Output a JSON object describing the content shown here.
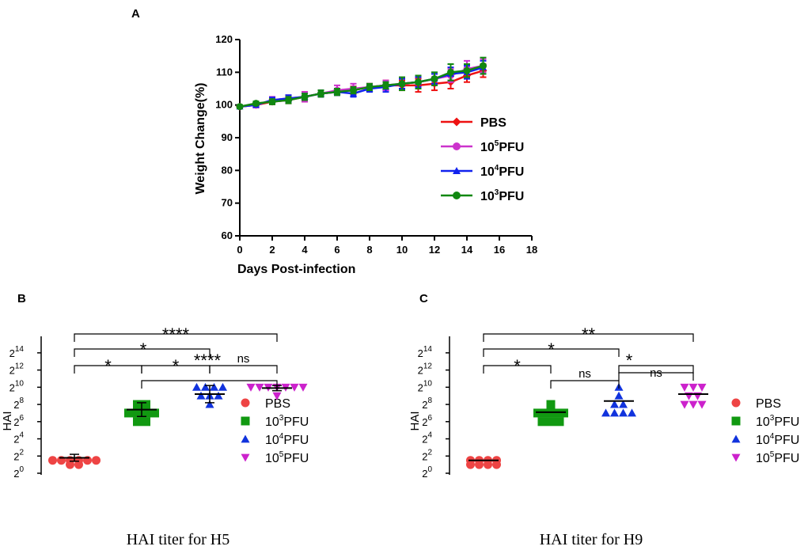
{
  "chart_data": [
    {
      "panel": "A",
      "type": "line",
      "xlabel": "Days Post-infection",
      "ylabel": "Weight Change(%)",
      "xlim": [
        0,
        18
      ],
      "ylim": [
        60,
        120
      ],
      "xticks": [
        "0",
        "2",
        "4",
        "6",
        "8",
        "10",
        "12",
        "14",
        "16",
        "18"
      ],
      "yticks": [
        "60",
        "70",
        "80",
        "90",
        "100",
        "110",
        "120"
      ],
      "x": [
        0,
        1,
        2,
        3,
        4,
        5,
        6,
        7,
        8,
        9,
        10,
        11,
        12,
        13,
        14,
        15
      ],
      "series": [
        {
          "name": "PBS",
          "base": "",
          "exp": "",
          "suffix": "PBS",
          "marker": "diamond",
          "color": "#ee1111",
          "values": [
            99.5,
            100,
            101,
            101.5,
            102.5,
            103.5,
            104,
            104.5,
            105.5,
            106,
            106,
            106,
            106.5,
            107,
            109,
            110.5
          ],
          "errors": [
            0.5,
            0.6,
            0.8,
            1,
            1.5,
            1,
            1,
            1.2,
            1,
            1.5,
            1.5,
            2,
            2,
            2,
            2,
            2
          ]
        },
        {
          "name": "10^5PFU",
          "base": "10",
          "exp": "5",
          "suffix": "PFU",
          "marker": "circle",
          "color": "#cc33cc",
          "values": [
            99.5,
            100,
            101.5,
            102,
            102.5,
            103.5,
            104.5,
            105,
            105.5,
            106,
            106.5,
            107,
            108,
            109,
            111,
            112
          ],
          "errors": [
            0.5,
            0.8,
            1,
            1,
            1.5,
            1,
            1.5,
            1.5,
            1,
            1.5,
            1.5,
            1.5,
            1.5,
            2,
            2.5,
            2
          ]
        },
        {
          "name": "10^4PFU",
          "base": "10",
          "exp": "4",
          "suffix": "PFU",
          "marker": "triangle",
          "color": "#1122ee",
          "values": [
            99.5,
            100,
            101.5,
            102,
            102.5,
            103.5,
            104,
            103.5,
            105,
            105.5,
            106.5,
            107,
            108,
            109.5,
            110,
            111.5
          ],
          "errors": [
            0.5,
            0.6,
            0.8,
            1,
            1,
            1,
            1,
            1,
            1,
            1.5,
            1.5,
            1.5,
            1.5,
            2,
            2,
            2
          ]
        },
        {
          "name": "10^3PFU",
          "base": "10",
          "exp": "3",
          "suffix": "PFU",
          "marker": "circle",
          "color": "#118811",
          "values": [
            99.5,
            100.5,
            101,
            101.5,
            102.5,
            103.5,
            104,
            104.5,
            105.5,
            106,
            106.5,
            107,
            108,
            110,
            110.5,
            112
          ],
          "errors": [
            0.5,
            0.6,
            0.8,
            1,
            1,
            1,
            1,
            1,
            1,
            1,
            2,
            2,
            2,
            2.5,
            2,
            2.5
          ]
        }
      ]
    },
    {
      "panel": "B",
      "type": "scatter",
      "title": "HAI titer for H5",
      "ylabel": "HAI",
      "ytick_exponents": [
        "0",
        "2",
        "4",
        "6",
        "8",
        "10",
        "12",
        "14"
      ],
      "ylim": [
        0,
        15
      ],
      "groups": [
        {
          "name": "PBS",
          "base": "",
          "exp": "",
          "suffix": "PBS",
          "marker": "circle",
          "color": "#ee4444",
          "points": [
            1,
            1,
            1.5,
            1.5,
            1.5,
            1.5,
            1.5,
            1.5
          ],
          "mean": 1.8,
          "sd": 0.4
        },
        {
          "name": "10^3PFU",
          "base": "10",
          "exp": "3",
          "suffix": "PFU",
          "marker": "square",
          "color": "#119911",
          "points": [
            6,
            6,
            7,
            7,
            7,
            7,
            8,
            8
          ],
          "mean": 7.4,
          "sd": 0.8
        },
        {
          "name": "10^4PFU",
          "base": "10",
          "exp": "4",
          "suffix": "PFU",
          "marker": "triangle",
          "color": "#1133dd",
          "points": [
            8,
            9,
            9,
            9,
            10,
            10,
            10,
            10
          ],
          "mean": 9.2,
          "sd": 1
        },
        {
          "name": "10^5PFU",
          "base": "10",
          "exp": "5",
          "suffix": "PFU",
          "marker": "triangle-down",
          "color": "#cc22cc",
          "points": [
            9,
            10,
            10,
            10,
            10,
            10,
            10,
            10
          ],
          "mean": 9.9,
          "sd": 0.3
        }
      ],
      "comparisons": [
        {
          "from": 0,
          "to": 3,
          "label": "****",
          "level": 3
        },
        {
          "from": 0,
          "to": 2,
          "label": "*",
          "level": 2
        },
        {
          "from": 0,
          "to": 1,
          "label": "*",
          "level": 1
        },
        {
          "from": 1,
          "to": 3,
          "label": "****",
          "level": 1.3
        },
        {
          "from": 1,
          "to": 2,
          "label": "*",
          "level": 0
        },
        {
          "from": 2,
          "to": 3,
          "label": "ns",
          "level": 0
        }
      ]
    },
    {
      "panel": "C",
      "type": "scatter",
      "title": "HAI titer for H9",
      "ylabel": "HAI",
      "ytick_exponents": [
        "0",
        "2",
        "4",
        "6",
        "8",
        "10",
        "12",
        "14"
      ],
      "ylim": [
        0,
        15
      ],
      "groups": [
        {
          "name": "PBS",
          "base": "",
          "exp": "",
          "suffix": "PBS",
          "marker": "circle",
          "color": "#ee4444",
          "points": [
            1,
            1,
            1,
            1,
            1.5,
            1.5,
            1.5,
            1.5
          ],
          "mean": 1.5,
          "sd": 0
        },
        {
          "name": "10^3PFU",
          "base": "10",
          "exp": "3",
          "suffix": "PFU",
          "marker": "square",
          "color": "#119911",
          "points": [
            6,
            6,
            6,
            7,
            7,
            7,
            7,
            8
          ],
          "mean": 7.1,
          "sd": 0
        },
        {
          "name": "10^4PFU",
          "base": "10",
          "exp": "4",
          "suffix": "PFU",
          "marker": "triangle",
          "color": "#1133dd",
          "points": [
            7,
            7,
            7,
            7,
            8,
            8,
            9,
            10
          ],
          "mean": 8.4,
          "sd": 0
        },
        {
          "name": "10^5PFU",
          "base": "10",
          "exp": "5",
          "suffix": "PFU",
          "marker": "triangle-down",
          "color": "#cc22cc",
          "points": [
            8,
            8,
            8,
            9,
            9,
            10,
            10,
            10
          ],
          "mean": 9.2,
          "sd": 0
        }
      ],
      "comparisons": [
        {
          "from": 0,
          "to": 3,
          "label": "**",
          "level": 3
        },
        {
          "from": 0,
          "to": 2,
          "label": "*",
          "level": 2
        },
        {
          "from": 0,
          "to": 1,
          "label": "*",
          "level": 1
        },
        {
          "from": 1,
          "to": 2,
          "label": "ns",
          "level": 0
        },
        {
          "from": 2,
          "to": 3,
          "label": "*",
          "level": 1.3
        },
        {
          "from": 2,
          "to": 3,
          "label": "ns",
          "level": 0
        }
      ]
    }
  ]
}
